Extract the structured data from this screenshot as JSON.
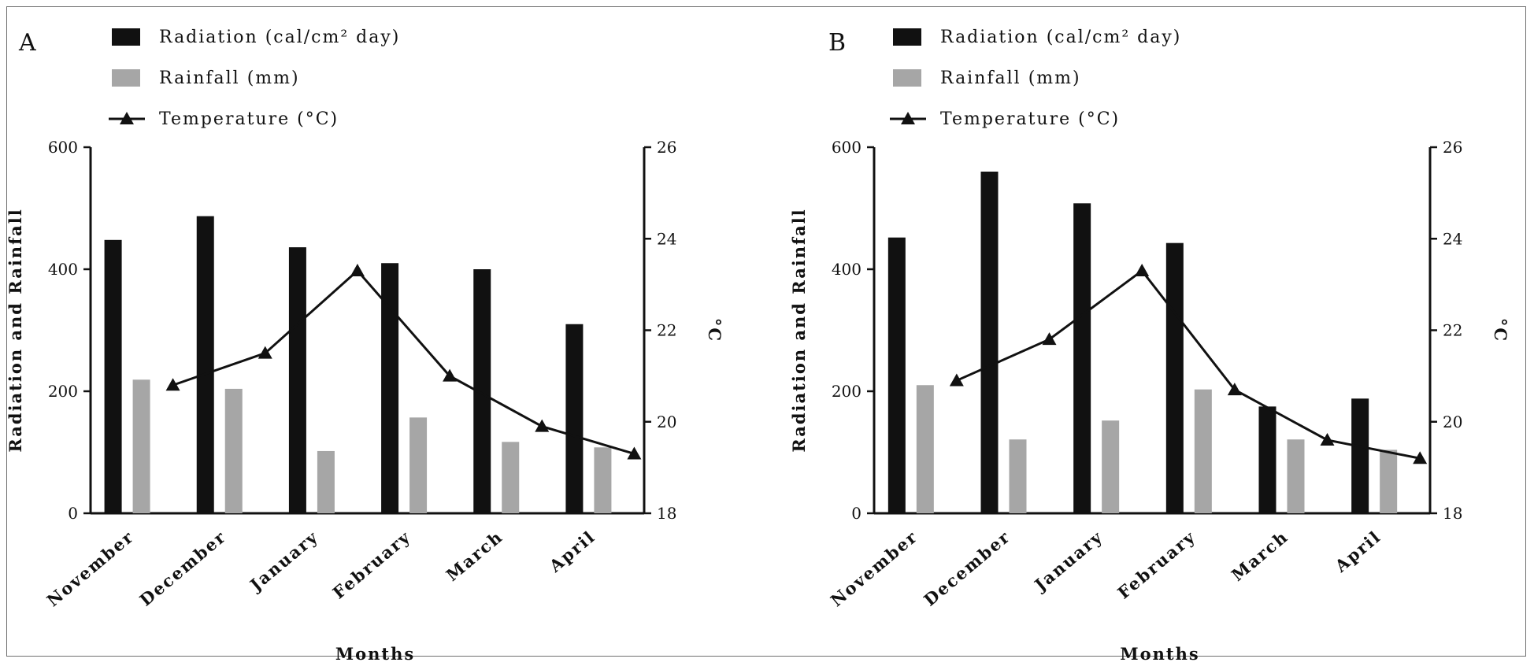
{
  "chart_data": [
    {
      "type": "bar",
      "panel": "A",
      "categories": [
        "November",
        "December",
        "January",
        "February",
        "March",
        "April"
      ],
      "series": [
        {
          "name": "Radiation (cal/cm² day)",
          "kind": "bar",
          "axis": "left",
          "color": "#111111",
          "values": [
            448,
            487,
            436,
            410,
            400,
            310
          ]
        },
        {
          "name": "Rainfall (mm)",
          "kind": "bar",
          "axis": "left",
          "color": "#a6a6a6",
          "values": [
            219,
            204,
            102,
            157,
            117,
            108
          ]
        },
        {
          "name": "Temperature (°C)",
          "kind": "line",
          "axis": "right",
          "color": "#111111",
          "marker": "triangle",
          "values": [
            20.8,
            21.5,
            23.3,
            21.0,
            19.9,
            19.3
          ]
        }
      ],
      "xlabel": "Months",
      "ylabel": "Radiation and Rainfall",
      "ylabel_right": "°C",
      "ylim": [
        0,
        600
      ],
      "yticks": [
        "0",
        "200",
        "400",
        "600"
      ],
      "ylim_right": [
        18,
        26
      ],
      "yticks_right": [
        "18",
        "20",
        "22",
        "24",
        "26"
      ],
      "legend": "top-left",
      "grid": false
    },
    {
      "type": "bar",
      "panel": "B",
      "categories": [
        "November",
        "December",
        "January",
        "February",
        "March",
        "April"
      ],
      "series": [
        {
          "name": "Radiation (cal/cm² day)",
          "kind": "bar",
          "axis": "left",
          "color": "#111111",
          "values": [
            452,
            560,
            508,
            443,
            175,
            188
          ]
        },
        {
          "name": "Rainfall (mm)",
          "kind": "bar",
          "axis": "left",
          "color": "#a6a6a6",
          "values": [
            210,
            121,
            152,
            203,
            121,
            104
          ]
        },
        {
          "name": "Temperature (°C)",
          "kind": "line",
          "axis": "right",
          "color": "#111111",
          "marker": "triangle",
          "values": [
            20.9,
            21.8,
            23.3,
            20.7,
            19.6,
            19.2
          ]
        }
      ],
      "xlabel": "Months",
      "ylabel": "Radiation and Rainfall",
      "ylabel_right": "°C",
      "ylim": [
        0,
        600
      ],
      "yticks": [
        "0",
        "200",
        "400",
        "600"
      ],
      "ylim_right": [
        18,
        26
      ],
      "yticks_right": [
        "18",
        "20",
        "22",
        "24",
        "26"
      ],
      "legend": "top-left",
      "grid": false
    }
  ]
}
